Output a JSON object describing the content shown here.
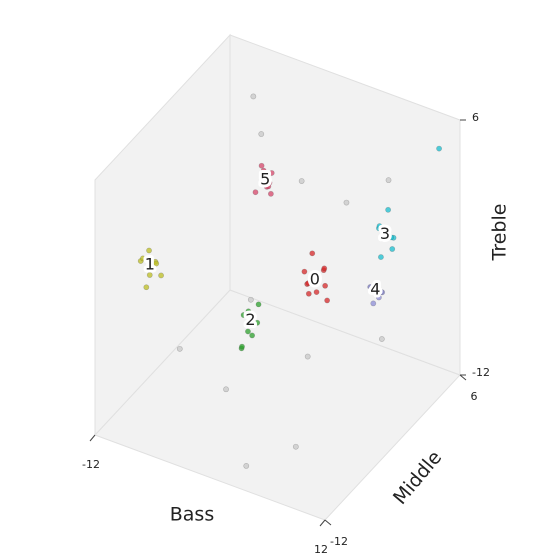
{
  "chart_data": {
    "type": "scatter3d",
    "xlabel": "Bass",
    "ylabel": "Middle",
    "zlabel": "Treble",
    "xlim": [
      -12,
      12
    ],
    "ylim": [
      -12,
      6
    ],
    "zlim": [
      -12,
      6
    ],
    "xticks": [
      -12,
      12
    ],
    "yticks": [
      -12,
      6
    ],
    "zticks": [
      -12,
      6
    ],
    "series": [
      {
        "color": "#d62728",
        "x": [
          3.2,
          4.5,
          3.8,
          4.9,
          2.9,
          4.1,
          3.5,
          4.7,
          3.0,
          5.1
        ],
        "y": [
          -3.5,
          -2.4,
          -3.9,
          -3.1,
          -2.6,
          -2.0,
          -3.3,
          -3.8,
          -2.2,
          -2.9
        ],
        "z": [
          -1.5,
          -2.8,
          -2.0,
          -1.2,
          -2.9,
          -1.9,
          -3.1,
          -2.4,
          -1.0,
          -3.4
        ]
      },
      {
        "color": "#bcbd22",
        "x": [
          -10.9,
          -10.2,
          -11.3,
          -9.8,
          -10.6,
          -10.0,
          -11.0,
          -10.4,
          -9.6
        ],
        "y": [
          -6.2,
          -7.0,
          -6.8,
          -6.0,
          -7.4,
          -6.5,
          -5.9,
          -7.2,
          -6.9
        ],
        "z": [
          -2.0,
          -3.1,
          -2.5,
          -3.6,
          -1.8,
          -2.4,
          -3.3,
          -3.9,
          -2.2
        ]
      },
      {
        "color": "#2ca02c",
        "x": [
          1.0,
          1.8,
          1.3,
          0.8,
          2.0,
          1.5,
          1.1,
          1.7,
          0.6
        ],
        "y": [
          -8.8,
          -8.0,
          -8.6,
          -7.9,
          -9.0,
          -8.3,
          -9.2,
          -7.7,
          -8.5
        ],
        "z": [
          -2.1,
          -2.9,
          -3.3,
          -2.4,
          -2.0,
          -3.7,
          -4.2,
          -1.8,
          -4.6
        ]
      },
      {
        "color": "#17becf",
        "x": [
          8.0,
          8.9,
          8.3,
          7.8,
          9.2,
          8.6,
          8.1,
          9.0,
          10.6
        ],
        "y": [
          0.3,
          1.1,
          0.0,
          1.0,
          0.4,
          -0.2,
          1.4,
          0.8,
          5.0
        ],
        "z": [
          0.6,
          -0.3,
          1.0,
          -0.6,
          0.2,
          -1.0,
          1.3,
          -0.9,
          4.2
        ]
      },
      {
        "color": "#8c8cd6",
        "x": [
          8.5,
          9.2,
          8.9,
          8.2,
          9.5,
          8.7
        ],
        "y": [
          -1.5,
          -0.8,
          -1.6,
          -1.0,
          -1.3,
          -0.6
        ],
        "z": [
          -2.4,
          -3.0,
          -3.4,
          -2.8,
          -2.6,
          -3.6
        ]
      },
      {
        "color": "#d6456a",
        "x": [
          -4.5,
          -3.7,
          -4.2,
          -3.5,
          -4.8,
          -3.9,
          -4.4,
          -3.3
        ],
        "y": [
          0.9,
          0.3,
          1.3,
          0.7,
          0.2,
          1.1,
          0.5,
          0.0
        ],
        "z": [
          1.2,
          0.6,
          0.2,
          1.4,
          0.0,
          -0.4,
          1.8,
          0.9
        ]
      },
      {
        "color": "#c8c8c8",
        "x": [
          -6.0,
          -2.0,
          0.5,
          5.5,
          6.5,
          -8.0,
          3.0,
          10.5,
          -1.0,
          7.0,
          -5.5,
          2.5
        ],
        "y": [
          2.5,
          -4.0,
          -10.5,
          -6.0,
          3.5,
          4.0,
          -11.0,
          -2.5,
          1.5,
          -9.5,
          -9.0,
          3.0
        ],
        "z": [
          2.5,
          -4.5,
          -6.5,
          -5.5,
          1.8,
          3.8,
          -11.0,
          -5.0,
          1.0,
          -9.5,
          -6.0,
          -0.5
        ]
      }
    ],
    "annotations": [
      {
        "text": "0",
        "x": 3.9,
        "y": -3,
        "z": -2.2
      },
      {
        "text": "1",
        "x": -10.5,
        "y": -6.6,
        "z": -2.7
      },
      {
        "text": "2",
        "x": 1.4,
        "y": -8.4,
        "z": -2.6
      },
      {
        "text": "3",
        "x": 8.4,
        "y": 0.6,
        "z": 0.1
      },
      {
        "text": "4",
        "x": 8.8,
        "y": -1.2,
        "z": -2.7
      },
      {
        "text": "5",
        "x": -4.1,
        "y": 0.6,
        "z": 0.8
      }
    ]
  }
}
